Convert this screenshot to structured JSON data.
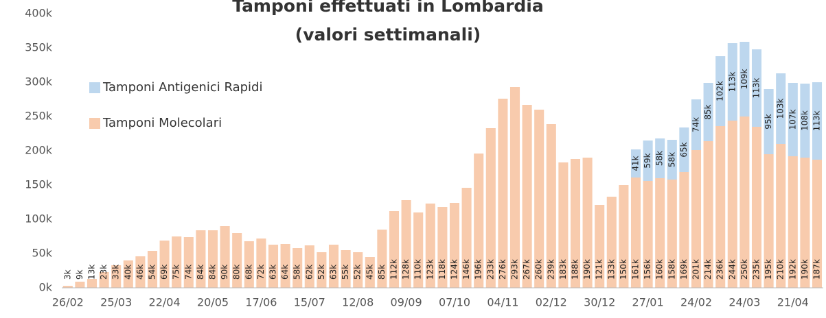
{
  "chart_data": {
    "type": "stacked_bar",
    "title": [
      "Tamponi effettuati in Lombardia",
      "(valori settimanali)"
    ],
    "categories": [
      "26/02",
      null,
      null,
      null,
      "25/03",
      null,
      null,
      null,
      "22/04",
      null,
      null,
      null,
      "20/05",
      null,
      null,
      null,
      "17/06",
      null,
      null,
      null,
      "15/07",
      null,
      null,
      null,
      "12/08",
      null,
      null,
      null,
      "09/09",
      null,
      null,
      null,
      "07/10",
      null,
      null,
      null,
      "04/11",
      null,
      null,
      null,
      "02/12",
      null,
      null,
      null,
      "30/12",
      null,
      null,
      null,
      "27/01",
      null,
      null,
      null,
      "24/02",
      null,
      null,
      null,
      "24/03",
      null,
      null,
      null,
      "21/04",
      null,
      null
    ],
    "series": [
      {
        "name": "Tamponi Molecolari",
        "color": "#f8cbad",
        "values": [
          3000,
          9000,
          13000,
          23000,
          33000,
          40000,
          46000,
          54000,
          69000,
          75000,
          74000,
          84000,
          84000,
          90000,
          80000,
          68000,
          72000,
          63000,
          64000,
          58000,
          62000,
          52000,
          63000,
          55000,
          52000,
          45000,
          85000,
          112000,
          128000,
          110000,
          123000,
          118000,
          124000,
          146000,
          196000,
          233000,
          276000,
          293000,
          267000,
          260000,
          239000,
          183000,
          188000,
          190000,
          121000,
          133000,
          150000,
          161000,
          156000,
          160000,
          158000,
          169000,
          201000,
          214000,
          236000,
          244000,
          250000,
          235000,
          195000,
          210000,
          192000,
          190000,
          187000
        ],
        "value_labels": [
          "3k",
          "9k",
          "13k",
          "23k",
          "33k",
          "40k",
          "46k",
          "54k",
          "69k",
          "75k",
          "74k",
          "84k",
          "84k",
          "90k",
          "80k",
          "68k",
          "72k",
          "63k",
          "64k",
          "58k",
          "62k",
          "52k",
          "63k",
          "55k",
          "52k",
          "45k",
          "85k",
          "112k",
          "128k",
          "110k",
          "123k",
          "118k",
          "124k",
          "146k",
          "196k",
          "233k",
          "276k",
          "293k",
          "267k",
          "260k",
          "239k",
          "183k",
          "188k",
          "190k",
          "121k",
          "133k",
          "150k",
          "161k",
          "156k",
          "160k",
          "158k",
          "169k",
          "201k",
          "214k",
          "236k",
          "244k",
          "250k",
          "235k",
          "195k",
          "210k",
          "192k",
          "190k",
          "187k"
        ]
      },
      {
        "name": "Tamponi Antigenici Rapidi",
        "color": "#bdd7ee",
        "values": [
          null,
          null,
          null,
          null,
          null,
          null,
          null,
          null,
          null,
          null,
          null,
          null,
          null,
          null,
          null,
          null,
          null,
          null,
          null,
          null,
          null,
          null,
          null,
          null,
          null,
          null,
          null,
          null,
          null,
          null,
          null,
          null,
          null,
          null,
          null,
          null,
          null,
          null,
          null,
          null,
          null,
          null,
          null,
          null,
          null,
          null,
          null,
          41000,
          59000,
          58000,
          58000,
          65000,
          74000,
          85000,
          102000,
          113000,
          109000,
          113000,
          95000,
          103000,
          107000,
          108000,
          113000
        ],
        "value_labels": [
          null,
          null,
          null,
          null,
          null,
          null,
          null,
          null,
          null,
          null,
          null,
          null,
          null,
          null,
          null,
          null,
          null,
          null,
          null,
          null,
          null,
          null,
          null,
          null,
          null,
          null,
          null,
          null,
          null,
          null,
          null,
          null,
          null,
          null,
          null,
          null,
          null,
          null,
          null,
          null,
          null,
          null,
          null,
          null,
          null,
          null,
          null,
          "41k",
          "59k",
          "58k",
          "58k",
          "65k",
          "74k",
          "85k",
          "102k",
          "113k",
          "109k",
          "113k",
          "95k",
          "103k",
          "107k",
          "108k",
          "113k"
        ]
      }
    ],
    "ylim": [
      0,
      400000
    ],
    "yticks": [
      {
        "value": 0,
        "label": "0k"
      },
      {
        "value": 50000,
        "label": "50k"
      },
      {
        "value": 100000,
        "label": "100k"
      },
      {
        "value": 150000,
        "label": "150k"
      },
      {
        "value": 200000,
        "label": "200k"
      },
      {
        "value": 250000,
        "label": "250k"
      },
      {
        "value": 300000,
        "label": "300k"
      },
      {
        "value": 350000,
        "label": "350k"
      },
      {
        "value": 400000,
        "label": "400k"
      }
    ],
    "grid": false,
    "legend": "upper left"
  }
}
